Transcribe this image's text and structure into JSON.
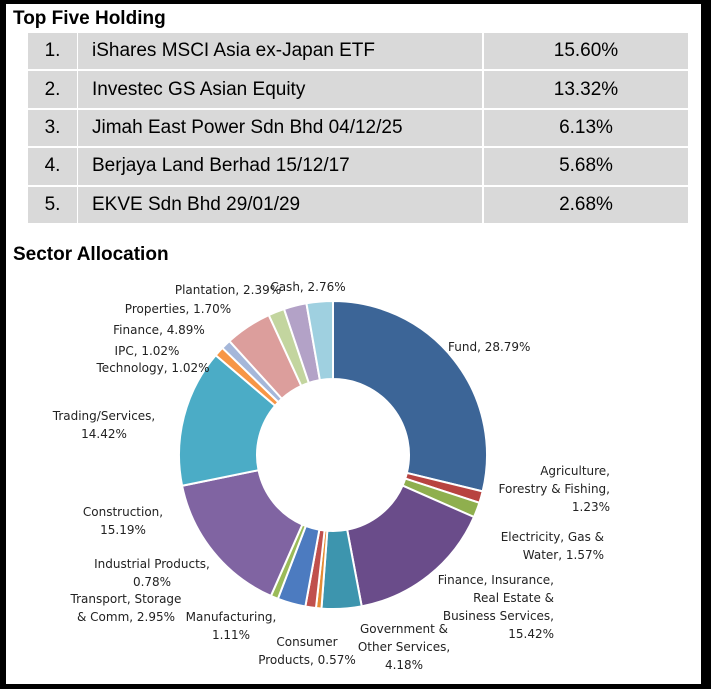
{
  "holdings": {
    "title": "Top Five Holding",
    "rows": [
      {
        "rank": "1.",
        "name": "iShares MSCI Asia ex-Japan ETF",
        "pct": "15.60%"
      },
      {
        "rank": "2.",
        "name": "Investec GS Asian Equity",
        "pct": "13.32%"
      },
      {
        "rank": "3.",
        "name": "Jimah East Power Sdn Bhd 04/12/25",
        "pct": "6.13%"
      },
      {
        "rank": "4.",
        "name": "Berjaya Land Berhad 15/12/17",
        "pct": "5.68%"
      },
      {
        "rank": "5.",
        "name": "EKVE Sdn Bhd 29/01/29",
        "pct": "2.68%"
      }
    ]
  },
  "sector": {
    "title": "Sector Allocation"
  },
  "chart_data": {
    "type": "pie",
    "style": "donut",
    "slices": [
      {
        "label": [
          "Fund, 28.79%"
        ],
        "value": 28.79,
        "color": "#3c6597"
      },
      {
        "label": [
          "Agriculture,",
          "Forestry & Fishing,",
          "1.23%"
        ],
        "value": 1.23,
        "color": "#b84340"
      },
      {
        "label": [
          "Electricity, Gas &",
          "Water, 1.57%"
        ],
        "value": 1.57,
        "color": "#8faf4e"
      },
      {
        "label": [
          "Finance, Insurance,",
          "Real Estate &",
          "Business Services,",
          "15.42%"
        ],
        "value": 15.42,
        "color": "#6a4c8a"
      },
      {
        "label": [
          "Government &",
          "Other Services,",
          "4.18%"
        ],
        "value": 4.18,
        "color": "#3d95ae"
      },
      {
        "label": [
          "Consumer",
          "Products, 0.57%"
        ],
        "value": 0.57,
        "color": "#e58c34"
      },
      {
        "label": [
          "Manufacturing,",
          "1.11%"
        ],
        "value": 1.11,
        "color": "#c0504d"
      },
      {
        "label": [
          "Transport, Storage",
          "& Comm, 2.95%"
        ],
        "value": 2.95,
        "color": "#4c7bc0"
      },
      {
        "label": [
          "Industrial Products,",
          "0.78%"
        ],
        "value": 0.78,
        "color": "#9bbb59"
      },
      {
        "label": [
          "Construction,",
          "15.19%"
        ],
        "value": 15.19,
        "color": "#8064a2"
      },
      {
        "label": [
          "Trading/Services,",
          "14.42%"
        ],
        "value": 14.42,
        "color": "#4bacc6"
      },
      {
        "label": [
          "Technology, 1.02%"
        ],
        "value": 1.02,
        "color": "#f79646"
      },
      {
        "label": [
          "IPC, 1.02%"
        ],
        "value": 1.02,
        "color": "#a5b7d9"
      },
      {
        "label": [
          "Finance, 4.89%"
        ],
        "value": 4.89,
        "color": "#dc9e9c"
      },
      {
        "label": [
          "Properties, 1.70%"
        ],
        "value": 1.7,
        "color": "#c3d59f"
      },
      {
        "label": [
          "Plantation, 2.39%"
        ],
        "value": 2.39,
        "color": "#b3a2c7"
      },
      {
        "label": [
          "Cash, 2.76%"
        ],
        "value": 2.76,
        "color": "#9fd0e0"
      }
    ]
  }
}
